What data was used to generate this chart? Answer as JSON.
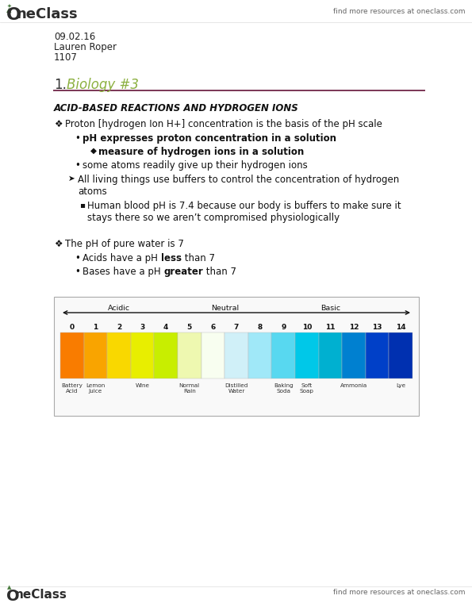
{
  "bg_color": "#ffffff",
  "page_width": 5.95,
  "page_height": 7.7,
  "dpi": 100,
  "header_tagline": "find more resources at oneclass.com",
  "leaf_color": "#4a7c3f",
  "brand_color": "#2d2d2d",
  "meta_lines": [
    "09.02.16",
    "Lauren Roper",
    "1107"
  ],
  "section_num": "1.",
  "section_title": "Biology #3",
  "section_title_color": "#8cb040",
  "section_num_color": "#333333",
  "divider_color": "#7b3555",
  "heading": "ACID-BASED REACTIONS AND HYDROGEN IONS",
  "body_text_color": "#111111",
  "footer_tagline": "find more resources at oneclass.com",
  "ph_colors": [
    "#f97c00",
    "#f9a400",
    "#f9d800",
    "#e8ee00",
    "#c8ee00",
    "#eef8b0",
    "#f8fef0",
    "#d0f0f8",
    "#a0e8f8",
    "#58d8f0",
    "#00c8e8",
    "#00b0d0",
    "#0080d0",
    "#0040c8",
    "#0030b0"
  ],
  "ph_labels": [
    "0",
    "1",
    "2",
    "3",
    "4",
    "5",
    "6",
    "7",
    "8",
    "9",
    "10",
    "11",
    "12",
    "13",
    "14"
  ],
  "ph_examples_order": [
    "0",
    "1",
    "3",
    "5",
    "7",
    "9",
    "10",
    "12",
    "14"
  ],
  "ph_examples": {
    "0": "Battery\nAcid",
    "1": "Lemon\nJuice",
    "3": "Wine",
    "5": "Normal\nRain",
    "7": "Distilled\nWater",
    "9": "Baking\nSoda",
    "10": "Soft\nSoap",
    "12": "Ammonia",
    "14": "Lye"
  }
}
